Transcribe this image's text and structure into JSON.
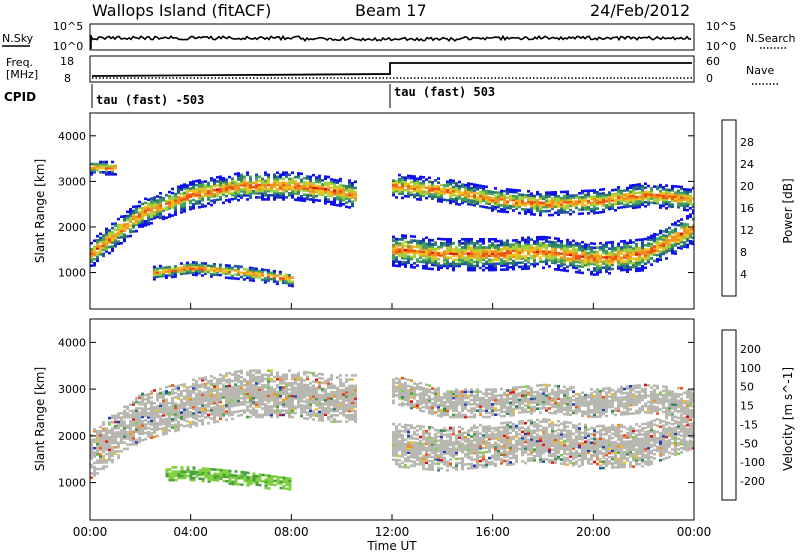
{
  "header": {
    "station": "Wallops Island (fitACF)",
    "beam": "Beam 17",
    "date": "24/Feb/2012"
  },
  "noise_panel": {
    "left_label": "N.Sky",
    "right_label": "N.Search",
    "left_ticks": [
      "10^5",
      "10^0"
    ],
    "right_ticks": [
      "10^5",
      "10^0"
    ]
  },
  "freq_panel": {
    "left_label_line1": "Freq.",
    "left_label_line2": "[MHz]",
    "right_label": "Nave",
    "left_ticks": [
      "18",
      "8"
    ],
    "right_ticks": [
      "60",
      "0"
    ]
  },
  "cpid_panel": {
    "label": "CPID",
    "segments": [
      "tau (fast) -503",
      "tau (fast) 503"
    ]
  },
  "time_axis": {
    "label": "Time UT",
    "ticks": [
      "00:00",
      "04:00",
      "08:00",
      "12:00",
      "16:00",
      "20:00",
      "00:00"
    ]
  },
  "colors": {
    "power": [
      "#1010ee",
      "#1f4fa0",
      "#2f7f6a",
      "#48a060",
      "#a0d040",
      "#f0c020",
      "#f09020",
      "#f05010",
      "#e01010"
    ],
    "velocity": [
      "#2040c0",
      "#2f7f6a",
      "#48a040",
      "#80d040",
      "#b8b8b0",
      "#f0c020",
      "#f09020",
      "#f05010",
      "#e01010"
    ],
    "ground_scatter": "#b8b8b0"
  },
  "chart_data": [
    {
      "type": "heatmap",
      "title": "",
      "xlabel": "",
      "ylabel": "Slant Range [km]",
      "xlim": [
        0,
        24
      ],
      "ylim": [
        200,
        4500
      ],
      "yticks": [
        1000,
        2000,
        3000,
        4000
      ],
      "colorbar": {
        "label": "Power [dB]",
        "ticks": [
          28,
          24,
          20,
          16,
          12,
          8,
          4
        ]
      },
      "bands": [
        {
          "x": [
            0,
            2,
            4,
            6,
            8,
            9.5,
            10.5
          ],
          "y": [
            1400,
            2300,
            2700,
            2900,
            2900,
            2800,
            2700
          ],
          "width": 300
        },
        {
          "x": [
            12,
            14,
            16,
            18,
            20,
            22,
            24
          ],
          "y": [
            1500,
            1400,
            1400,
            1450,
            1300,
            1400,
            2000
          ],
          "width": 350
        },
        {
          "x": [
            12,
            14,
            16,
            18,
            20,
            22,
            24
          ],
          "y": [
            2900,
            2800,
            2600,
            2500,
            2550,
            2700,
            2600
          ],
          "width": 250
        },
        {
          "x": [
            2.5,
            4,
            6,
            8
          ],
          "y": [
            1000,
            1100,
            1000,
            850
          ],
          "width": 150
        },
        {
          "x": [
            0,
            1
          ],
          "y": [
            3300,
            3300
          ],
          "width": 150
        }
      ]
    },
    {
      "type": "heatmap",
      "title": "",
      "xlabel": "Time UT",
      "ylabel": "Slant Range [km]",
      "xlim": [
        0,
        24
      ],
      "ylim": [
        200,
        4500
      ],
      "yticks": [
        1000,
        2000,
        3000,
        4000
      ],
      "colorbar": {
        "label": "Velocity [m s^-1]",
        "ticks": [
          200,
          100,
          50,
          15,
          -15,
          -50,
          -100,
          -200
        ]
      },
      "bands": [
        {
          "x": [
            0,
            2,
            4,
            6,
            8,
            9.5,
            10.5
          ],
          "y": [
            1600,
            2400,
            2700,
            2900,
            2900,
            2800,
            2800
          ],
          "width": 500
        },
        {
          "x": [
            12,
            14,
            16,
            18,
            20,
            22,
            24
          ],
          "y": [
            1800,
            1700,
            1800,
            1900,
            1750,
            1800,
            2200
          ],
          "width": 450
        },
        {
          "x": [
            12,
            14,
            16,
            18,
            20,
            22,
            24
          ],
          "y": [
            3000,
            2700,
            2700,
            2800,
            2700,
            2800,
            2700
          ],
          "width": 300
        },
        {
          "x": [
            3,
            4,
            6,
            8
          ],
          "y": [
            1200,
            1200,
            1100,
            950
          ],
          "width": 150
        }
      ]
    }
  ]
}
